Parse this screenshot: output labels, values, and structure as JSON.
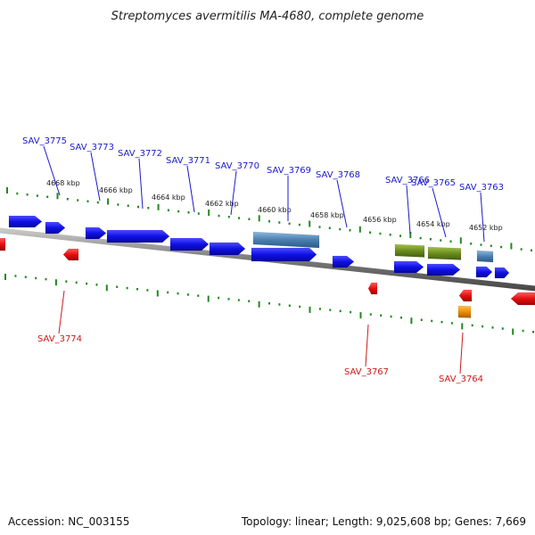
{
  "title": "Streptomyces avermitilis MA-4680, complete genome",
  "footer": {
    "accession": "Accession: NC_003155",
    "summary": "Topology: linear; Length: 9,025,608 bp; Genes: 7,669"
  },
  "colors": {
    "forward_gene": "#1010e6",
    "reverse_gene": "#e60e0e",
    "forward_label": "#1a1acc",
    "reverse_label": "#cc1a1a",
    "rna_feature": "#4a7fb0",
    "misc_feature": "#6b8c1f",
    "orange_feature": "#f08c00",
    "backbone": "#8a8a8a",
    "tick": "#1f8a1f"
  },
  "scale_ticks": [
    "4668 kbp",
    "4666 kbp",
    "4664 kbp",
    "4662 kbp",
    "4660 kbp",
    "4658 kbp",
    "4656 kbp",
    "4654 kbp",
    "4652 kbp"
  ],
  "genes_top": [
    "SAV_3775",
    "SAV_3773",
    "SAV_3772",
    "SAV_3771",
    "SAV_3770",
    "SAV_3769",
    "SAV_3768",
    "SAV_3766",
    "SAV_3765",
    "SAV_3763"
  ],
  "genes_bottom": [
    "SAV_3774",
    "SAV_3767",
    "SAV_3764"
  ]
}
